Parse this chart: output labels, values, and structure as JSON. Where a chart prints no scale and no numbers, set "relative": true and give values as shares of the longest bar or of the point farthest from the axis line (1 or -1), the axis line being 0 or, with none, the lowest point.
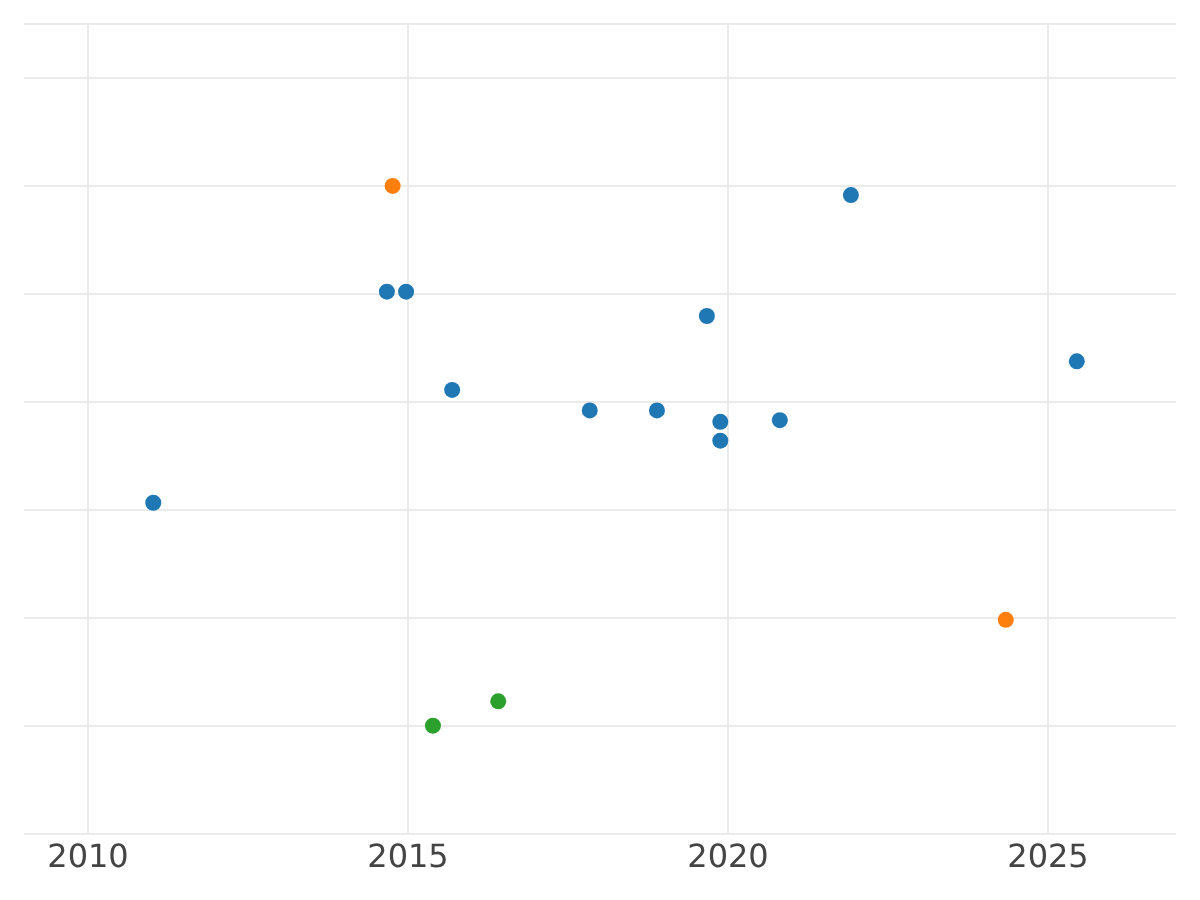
{
  "chart_data": {
    "type": "scatter",
    "relative": true,
    "xlim": [
      2009.0,
      2027.0
    ],
    "xticks": [
      2010,
      2015,
      2020,
      2025
    ],
    "series": [
      {
        "color": "#1f77b4",
        "x": [
          2011.02,
          2014.67,
          2014.97,
          2015.69,
          2017.84,
          2018.89,
          2019.67,
          2019.88,
          2019.88,
          2020.81,
          2021.92,
          2025.45
        ],
        "values": [
          0.413,
          0.804,
          0.804,
          0.622,
          0.584,
          0.584,
          0.759,
          0.563,
          0.528,
          0.566,
          0.983,
          0.675
        ]
      },
      {
        "color": "#ff7f0e",
        "x": [
          2014.76,
          2024.34
        ],
        "values": [
          1.0,
          0.196
        ]
      },
      {
        "color": "#2ca02c",
        "x": [
          2015.39,
          2016.41
        ],
        "values": [
          0.0,
          0.045
        ]
      }
    ],
    "marker": "circle",
    "grid": true,
    "legend": false
  }
}
